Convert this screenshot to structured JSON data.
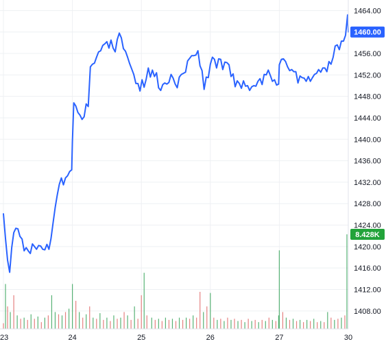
{
  "chart_data": {
    "type": "line",
    "title": "",
    "xlabel": "",
    "ylabel": "",
    "x_tick_labels": [
      "23",
      "24",
      "25",
      "26",
      "27",
      "30"
    ],
    "y_tick_labels": [
      "1408.00",
      "1412.00",
      "1416.00",
      "1420.00",
      "1424.00",
      "1428.00",
      "1432.00",
      "1436.00",
      "1440.00",
      "1444.00",
      "1448.00",
      "1452.00",
      "1456.00",
      "1460.00",
      "1464.00"
    ],
    "ylim": [
      1404.4,
      1465.2
    ],
    "grid": true,
    "legend": "none",
    "line_color": "#2962ff",
    "last_price_label": "1460.00",
    "last_price_value": 1460.0,
    "volume_label": "8.428K",
    "volume_label_color": "#22a33a",
    "series": [
      {
        "values": [
          [
            23.0,
            1426.1
          ],
          [
            23.03,
            1421.5
          ],
          [
            23.06,
            1417.5
          ],
          [
            23.09,
            1415.2
          ],
          [
            23.12,
            1419.8
          ],
          [
            23.15,
            1422.6
          ],
          [
            23.18,
            1423.4
          ],
          [
            23.21,
            1423.3
          ],
          [
            23.24,
            1421.9
          ],
          [
            23.27,
            1421.4
          ],
          [
            23.3,
            1419.2
          ],
          [
            23.33,
            1419.8
          ],
          [
            23.36,
            1419.2
          ],
          [
            23.39,
            1418.7
          ],
          [
            23.42,
            1420.5
          ],
          [
            23.45,
            1420.0
          ],
          [
            23.48,
            1419.5
          ],
          [
            23.51,
            1420.2
          ],
          [
            23.54,
            1420.1
          ],
          [
            23.57,
            1419.5
          ],
          [
            23.6,
            1419.4
          ],
          [
            23.63,
            1420.4
          ],
          [
            23.66,
            1419.5
          ],
          [
            23.69,
            1421.5
          ],
          [
            23.72,
            1424.4
          ],
          [
            23.75,
            1427.3
          ],
          [
            23.78,
            1429.6
          ],
          [
            23.81,
            1431.6
          ],
          [
            23.84,
            1432.8
          ],
          [
            23.87,
            1431.5
          ],
          [
            23.9,
            1432.8
          ],
          [
            23.93,
            1433.2
          ],
          [
            23.96,
            1434.0
          ],
          [
            23.99,
            1434.3
          ],
          [
            24.0,
            1439.6
          ],
          [
            24.02,
            1446.8
          ],
          [
            24.05,
            1446.2
          ],
          [
            24.08,
            1445.0
          ],
          [
            24.11,
            1444.5
          ],
          [
            24.14,
            1443.7
          ],
          [
            24.17,
            1444.2
          ],
          [
            24.2,
            1446.6
          ],
          [
            24.23,
            1446.1
          ],
          [
            24.26,
            1453.5
          ],
          [
            24.29,
            1454.0
          ],
          [
            24.32,
            1454.2
          ],
          [
            24.35,
            1455.3
          ],
          [
            24.38,
            1456.3
          ],
          [
            24.41,
            1456.5
          ],
          [
            24.44,
            1457.5
          ],
          [
            24.47,
            1457.8
          ],
          [
            24.5,
            1458.2
          ],
          [
            24.53,
            1457.0
          ],
          [
            24.56,
            1458.5
          ],
          [
            24.59,
            1457.0
          ],
          [
            24.62,
            1456.3
          ],
          [
            24.65,
            1458.6
          ],
          [
            24.68,
            1459.8
          ],
          [
            24.71,
            1458.9
          ],
          [
            24.74,
            1456.9
          ],
          [
            24.77,
            1456.4
          ],
          [
            24.8,
            1455.3
          ],
          [
            24.83,
            1454.1
          ],
          [
            24.86,
            1453.1
          ],
          [
            24.89,
            1452.1
          ],
          [
            24.92,
            1450.4
          ],
          [
            24.95,
            1450.4
          ],
          [
            24.98,
            1449.0
          ],
          [
            25.01,
            1451.1
          ],
          [
            25.04,
            1449.7
          ],
          [
            25.07,
            1451.2
          ],
          [
            25.1,
            1453.3
          ],
          [
            25.13,
            1451.6
          ],
          [
            25.16,
            1452.9
          ],
          [
            25.19,
            1451.7
          ],
          [
            25.22,
            1452.4
          ],
          [
            25.25,
            1449.6
          ],
          [
            25.28,
            1449.1
          ],
          [
            25.31,
            1450.2
          ],
          [
            25.34,
            1450.5
          ],
          [
            25.37,
            1450.3
          ],
          [
            25.4,
            1450.6
          ],
          [
            25.43,
            1452.1
          ],
          [
            25.46,
            1451.4
          ],
          [
            25.49,
            1450.3
          ],
          [
            25.52,
            1449.6
          ],
          [
            25.55,
            1451.6
          ],
          [
            25.58,
            1452.1
          ],
          [
            25.61,
            1452.3
          ],
          [
            25.64,
            1452.5
          ],
          [
            25.67,
            1454.6
          ],
          [
            25.7,
            1455.1
          ],
          [
            25.73,
            1455.6
          ],
          [
            25.76,
            1455.6
          ],
          [
            25.79,
            1455.7
          ],
          [
            25.82,
            1456.5
          ],
          [
            25.85,
            1453.7
          ],
          [
            25.88,
            1452.8
          ],
          [
            25.91,
            1449.3
          ],
          [
            25.94,
            1451.6
          ],
          [
            25.97,
            1451.5
          ],
          [
            26.0,
            1454.0
          ],
          [
            26.03,
            1455.3
          ],
          [
            26.06,
            1454.9
          ],
          [
            26.09,
            1453.3
          ],
          [
            26.12,
            1455.0
          ],
          [
            26.15,
            1454.9
          ],
          [
            26.18,
            1453.0
          ],
          [
            26.21,
            1454.4
          ],
          [
            26.24,
            1454.3
          ],
          [
            26.27,
            1453.9
          ],
          [
            26.3,
            1451.7
          ],
          [
            26.33,
            1452.2
          ],
          [
            26.36,
            1449.8
          ],
          [
            26.39,
            1450.9
          ],
          [
            26.42,
            1450.4
          ],
          [
            26.45,
            1449.5
          ],
          [
            26.48,
            1450.9
          ],
          [
            26.51,
            1449.9
          ],
          [
            26.54,
            1450.0
          ],
          [
            26.57,
            1449.1
          ],
          [
            26.6,
            1449.8
          ],
          [
            26.63,
            1450.0
          ],
          [
            26.66,
            1449.9
          ],
          [
            26.69,
            1450.8
          ],
          [
            26.72,
            1451.3
          ],
          [
            26.75,
            1450.2
          ],
          [
            26.78,
            1452.1
          ],
          [
            26.81,
            1452.0
          ],
          [
            26.84,
            1452.9
          ],
          [
            26.87,
            1451.9
          ],
          [
            26.9,
            1450.8
          ],
          [
            26.93,
            1451.1
          ],
          [
            26.96,
            1450.1
          ],
          [
            26.99,
            1450.3
          ],
          [
            27.0,
            1453.9
          ],
          [
            27.03,
            1454.9
          ],
          [
            27.06,
            1455.0
          ],
          [
            27.09,
            1454.5
          ],
          [
            27.12,
            1453.5
          ],
          [
            27.15,
            1452.8
          ],
          [
            27.18,
            1453.0
          ],
          [
            27.21,
            1452.6
          ],
          [
            27.24,
            1452.6
          ],
          [
            27.27,
            1450.5
          ],
          [
            27.3,
            1451.8
          ],
          [
            27.33,
            1451.5
          ],
          [
            27.36,
            1451.4
          ],
          [
            27.39,
            1450.8
          ],
          [
            27.42,
            1451.7
          ],
          [
            27.45,
            1450.8
          ],
          [
            27.48,
            1451.5
          ],
          [
            27.51,
            1452.1
          ],
          [
            27.54,
            1452.3
          ],
          [
            27.57,
            1453.0
          ],
          [
            27.6,
            1452.5
          ],
          [
            27.63,
            1453.3
          ],
          [
            27.66,
            1453.3
          ],
          [
            27.69,
            1452.6
          ],
          [
            27.72,
            1454.5
          ],
          [
            27.75,
            1454.0
          ],
          [
            27.78,
            1455.3
          ],
          [
            27.81,
            1457.4
          ],
          [
            27.84,
            1457.6
          ],
          [
            27.87,
            1456.7
          ],
          [
            27.9,
            1458.3
          ],
          [
            27.93,
            1458.3
          ],
          [
            27.96,
            1459.4
          ],
          [
            27.99,
            1463.2
          ],
          [
            28.0,
            1460.0
          ]
        ]
      }
    ],
    "volume_series": [
      [
        23.0,
        0.5,
        "red"
      ],
      [
        23.03,
        4.0,
        "green"
      ],
      [
        23.06,
        2.0,
        "red"
      ],
      [
        23.1,
        1.5,
        "green"
      ],
      [
        23.15,
        3.0,
        "red"
      ],
      [
        23.2,
        1.2,
        "green"
      ],
      [
        23.25,
        0.9,
        "red"
      ],
      [
        23.3,
        1.0,
        "green"
      ],
      [
        23.35,
        0.8,
        "red"
      ],
      [
        23.4,
        1.3,
        "green"
      ],
      [
        23.45,
        0.9,
        "red"
      ],
      [
        23.5,
        1.1,
        "green"
      ],
      [
        23.55,
        0.6,
        "red"
      ],
      [
        23.6,
        1.0,
        "green"
      ],
      [
        23.65,
        1.2,
        "red"
      ],
      [
        23.7,
        3.0,
        "green"
      ],
      [
        23.75,
        1.5,
        "green"
      ],
      [
        23.8,
        1.3,
        "red"
      ],
      [
        23.85,
        1.2,
        "green"
      ],
      [
        23.9,
        1.5,
        "red"
      ],
      [
        23.95,
        1.8,
        "green"
      ],
      [
        24.0,
        4.0,
        "green"
      ],
      [
        24.05,
        2.5,
        "red"
      ],
      [
        24.1,
        1.5,
        "green"
      ],
      [
        24.15,
        1.0,
        "red"
      ],
      [
        24.2,
        1.3,
        "green"
      ],
      [
        24.25,
        2.0,
        "red"
      ],
      [
        24.3,
        1.0,
        "green"
      ],
      [
        24.35,
        0.9,
        "red"
      ],
      [
        24.4,
        1.4,
        "green"
      ],
      [
        24.45,
        0.8,
        "red"
      ],
      [
        24.5,
        1.0,
        "green"
      ],
      [
        24.55,
        0.7,
        "red"
      ],
      [
        24.6,
        1.2,
        "green"
      ],
      [
        24.65,
        0.9,
        "red"
      ],
      [
        24.7,
        1.0,
        "green"
      ],
      [
        24.75,
        1.5,
        "red"
      ],
      [
        24.8,
        1.2,
        "green"
      ],
      [
        24.85,
        0.8,
        "red"
      ],
      [
        24.9,
        2.0,
        "green"
      ],
      [
        24.95,
        0.9,
        "red"
      ],
      [
        25.0,
        3.0,
        "red"
      ],
      [
        25.04,
        5.0,
        "green"
      ],
      [
        25.08,
        1.2,
        "red"
      ],
      [
        25.15,
        1.0,
        "green"
      ],
      [
        25.2,
        0.8,
        "red"
      ],
      [
        25.25,
        0.9,
        "green"
      ],
      [
        25.3,
        0.7,
        "red"
      ],
      [
        25.35,
        1.0,
        "green"
      ],
      [
        25.4,
        0.8,
        "red"
      ],
      [
        25.45,
        0.9,
        "green"
      ],
      [
        25.5,
        0.7,
        "red"
      ],
      [
        25.55,
        1.0,
        "green"
      ],
      [
        25.6,
        0.8,
        "red"
      ],
      [
        25.65,
        1.0,
        "green"
      ],
      [
        25.7,
        0.9,
        "red"
      ],
      [
        25.75,
        1.2,
        "green"
      ],
      [
        25.8,
        1.0,
        "red"
      ],
      [
        25.85,
        3.3,
        "red"
      ],
      [
        25.9,
        1.5,
        "green"
      ],
      [
        25.95,
        2.0,
        "red"
      ],
      [
        26.0,
        3.2,
        "green"
      ],
      [
        26.05,
        1.0,
        "red"
      ],
      [
        26.1,
        0.8,
        "green"
      ],
      [
        26.15,
        0.9,
        "red"
      ],
      [
        26.2,
        0.7,
        "green"
      ],
      [
        26.25,
        1.0,
        "red"
      ],
      [
        26.3,
        0.8,
        "green"
      ],
      [
        26.35,
        0.9,
        "red"
      ],
      [
        26.4,
        0.7,
        "green"
      ],
      [
        26.45,
        0.8,
        "red"
      ],
      [
        26.5,
        0.6,
        "green"
      ],
      [
        26.55,
        0.9,
        "red"
      ],
      [
        26.6,
        0.7,
        "green"
      ],
      [
        26.65,
        0.8,
        "red"
      ],
      [
        26.7,
        0.6,
        "green"
      ],
      [
        26.75,
        0.8,
        "red"
      ],
      [
        26.8,
        0.7,
        "green"
      ],
      [
        26.85,
        1.0,
        "red"
      ],
      [
        26.9,
        0.8,
        "green"
      ],
      [
        26.95,
        0.7,
        "red"
      ],
      [
        26.99,
        1.2,
        "green"
      ],
      [
        27.0,
        7.0,
        "green"
      ],
      [
        27.05,
        1.5,
        "red"
      ],
      [
        27.1,
        1.0,
        "green"
      ],
      [
        27.15,
        0.8,
        "red"
      ],
      [
        27.2,
        0.9,
        "green"
      ],
      [
        27.25,
        0.7,
        "red"
      ],
      [
        27.3,
        0.8,
        "green"
      ],
      [
        27.35,
        0.6,
        "red"
      ],
      [
        27.4,
        0.8,
        "green"
      ],
      [
        27.45,
        0.7,
        "red"
      ],
      [
        27.5,
        0.9,
        "green"
      ],
      [
        27.55,
        0.6,
        "red"
      ],
      [
        27.6,
        0.7,
        "green"
      ],
      [
        27.65,
        0.6,
        "red"
      ],
      [
        27.7,
        1.5,
        "green"
      ],
      [
        27.75,
        1.0,
        "red"
      ],
      [
        27.8,
        0.8,
        "green"
      ],
      [
        27.85,
        0.9,
        "red"
      ],
      [
        27.9,
        1.0,
        "green"
      ],
      [
        27.95,
        1.2,
        "red"
      ],
      [
        27.98,
        8.428,
        "green"
      ]
    ]
  }
}
